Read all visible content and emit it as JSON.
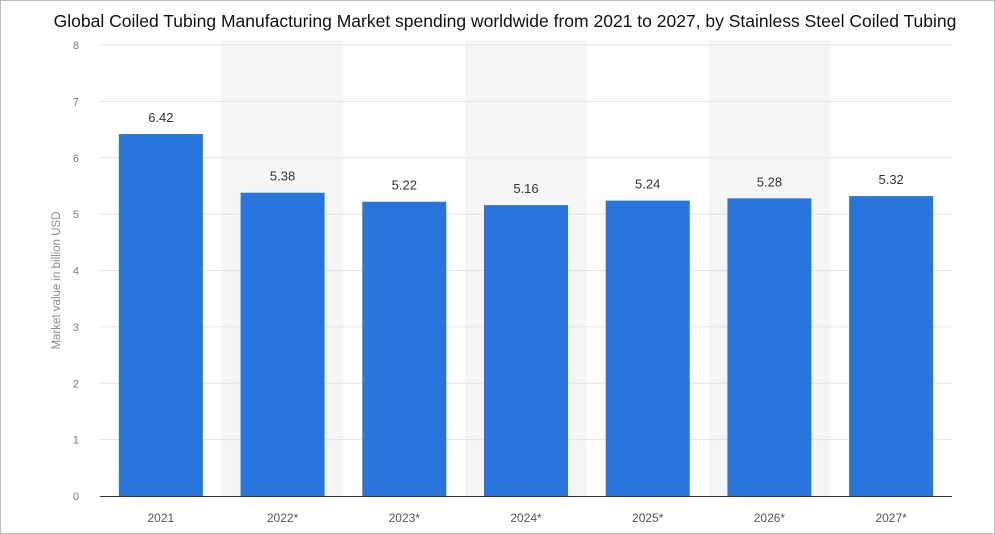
{
  "chart_data": {
    "type": "bar",
    "title": "Global Coiled Tubing Manufacturing Market spending worldwide from 2021 to 2027, by Stainless Steel Coiled Tubing",
    "xlabel": "",
    "ylabel": "Market value in billion USD",
    "categories": [
      "2021",
      "2022*",
      "2023*",
      "2024*",
      "2025*",
      "2026*",
      "2027*"
    ],
    "values": [
      6.42,
      5.38,
      5.22,
      5.16,
      5.24,
      5.28,
      5.32
    ],
    "value_labels": [
      "6.42",
      "5.38",
      "5.22",
      "5.16",
      "5.24",
      "5.28",
      "5.32"
    ],
    "ylim": [
      0,
      8
    ],
    "yticks": [
      "0",
      "1",
      "2",
      "3",
      "4",
      "5",
      "6",
      "7",
      "8"
    ],
    "grid": true,
    "legend": "none",
    "colors": {
      "bar": "#2876dd",
      "band": "#f6f6f6",
      "grid": "#e3e3e3",
      "axis": "#333333"
    }
  }
}
